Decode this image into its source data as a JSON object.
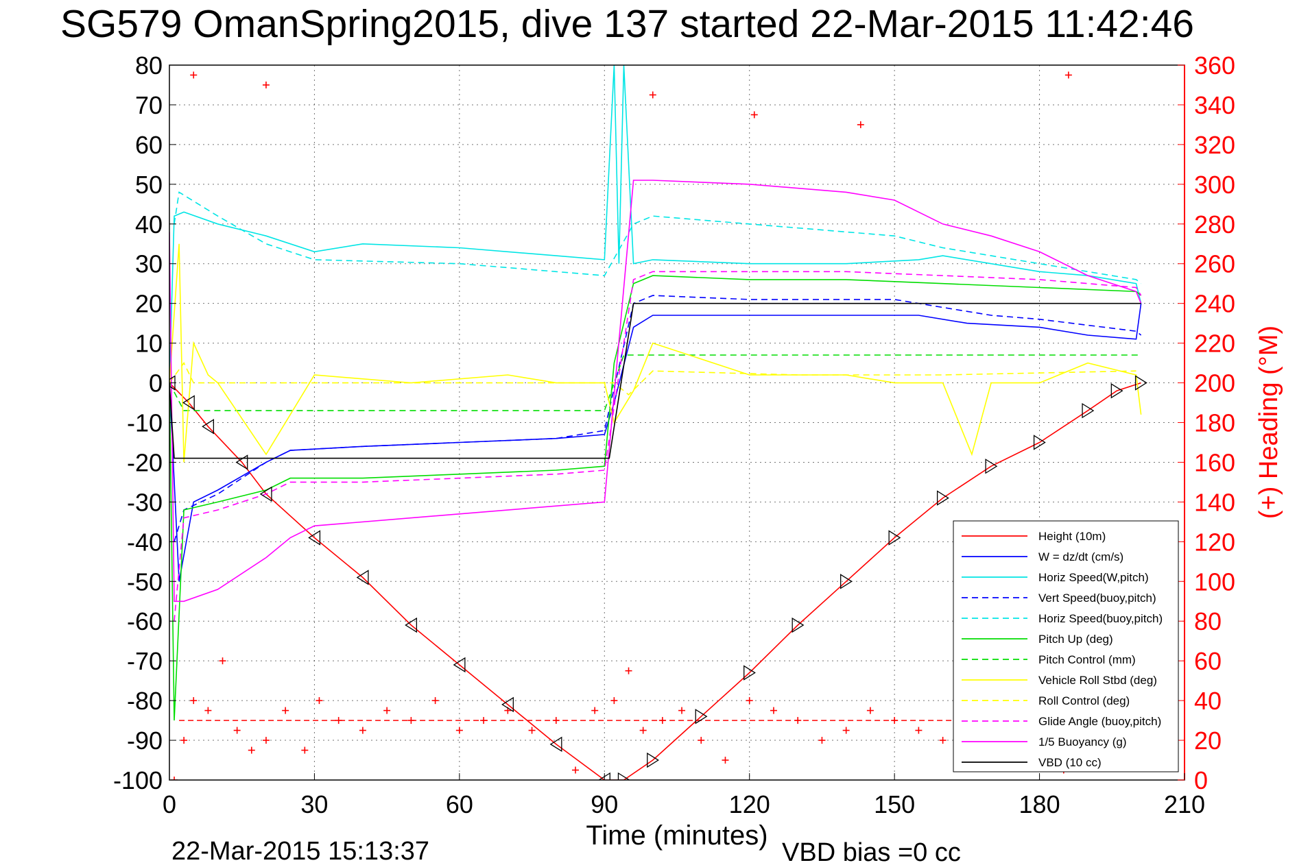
{
  "chart_data": {
    "type": "line",
    "title": "SG579 OmanSpring2015, dive 137 started 22-Mar-2015 11:42:46",
    "xlabel": "Time (minutes)",
    "ylabel": "",
    "ylabel_right": "(+) Heading (°M)",
    "xlim": [
      0,
      210
    ],
    "ylim": [
      -100,
      80
    ],
    "ylim_right": [
      0,
      360
    ],
    "xticks": [
      "0",
      "30",
      "60",
      "90",
      "120",
      "150",
      "180",
      "210"
    ],
    "yticks": [
      "80",
      "70",
      "60",
      "50",
      "40",
      "30",
      "20",
      "10",
      "0",
      "-10",
      "-20",
      "-30",
      "-40",
      "-50",
      "-60",
      "-70",
      "-80",
      "-90",
      "-100"
    ],
    "yticks_right": [
      "360",
      "340",
      "320",
      "300",
      "280",
      "260",
      "240",
      "220",
      "200",
      "180",
      "160",
      "140",
      "120",
      "100",
      "80",
      "60",
      "40",
      "20",
      "0"
    ],
    "grid": true,
    "legend_position": "bottom-right",
    "footer_left": "22-Mar-2015 15:13:37",
    "footer_right": "VBD bias =0 cc",
    "series": [
      {
        "name": "Height (10m)",
        "color": "#ff0000",
        "style": "solid",
        "x": [
          0,
          4,
          8,
          15,
          20,
          30,
          40,
          50,
          60,
          70,
          80,
          90,
          94,
          100,
          110,
          120,
          130,
          140,
          150,
          160,
          170,
          180,
          190,
          196,
          201
        ],
        "y": [
          0,
          -5,
          -11,
          -20,
          -28,
          -39,
          -49,
          -61,
          -71,
          -81,
          -91,
          -100,
          -100,
          -95,
          -84,
          -73,
          -61,
          -50,
          -39,
          -29,
          -21,
          -15,
          -7,
          -2,
          0
        ]
      },
      {
        "name": "W = dz/dt (cm/s)",
        "color": "#0000ff",
        "style": "solid",
        "x": [
          0,
          2,
          5,
          10,
          20,
          25,
          40,
          60,
          80,
          90,
          92,
          96,
          100,
          120,
          140,
          155,
          165,
          180,
          190,
          200,
          201
        ],
        "y": [
          0,
          -50,
          -30,
          -27,
          -20,
          -17,
          -16,
          -15,
          -14,
          -13,
          -5,
          14,
          17,
          17,
          17,
          17,
          15,
          14,
          12,
          11,
          20
        ]
      },
      {
        "name": "Horiz Speed(W,pitch)",
        "color": "#00e5e5",
        "style": "solid",
        "x": [
          0,
          1,
          3,
          10,
          20,
          30,
          40,
          60,
          80,
          90,
          92,
          93,
          94,
          96,
          100,
          120,
          140,
          155,
          160,
          180,
          190,
          200,
          201
        ],
        "y": [
          0,
          42,
          43,
          40,
          37,
          33,
          35,
          34,
          32,
          31,
          80,
          30,
          80,
          30,
          31,
          30,
          30,
          31,
          32,
          28,
          27,
          25,
          20
        ]
      },
      {
        "name": "Vert Speed(buoy,pitch)",
        "color": "#0000ff",
        "style": "dashed",
        "x": [
          1,
          3,
          10,
          20,
          25,
          40,
          60,
          80,
          90,
          96,
          100,
          120,
          140,
          150,
          160,
          170,
          180,
          200,
          201
        ],
        "y": [
          -40,
          -32,
          -28,
          -20,
          -17,
          -16,
          -15,
          -14,
          -12,
          20,
          22,
          21,
          21,
          21,
          19,
          17,
          16,
          13,
          12
        ]
      },
      {
        "name": "Horiz Speed(buoy,pitch)",
        "color": "#00e5e5",
        "style": "dashed",
        "x": [
          1,
          2,
          10,
          20,
          30,
          60,
          80,
          90,
          96,
          100,
          120,
          140,
          150,
          160,
          170,
          180,
          200,
          201
        ],
        "y": [
          40,
          48,
          42,
          35,
          31,
          30,
          28,
          27,
          40,
          42,
          40,
          38,
          37,
          34,
          32,
          30,
          26,
          25
        ]
      },
      {
        "name": "Pitch Up (deg)",
        "color": "#00dd00",
        "style": "solid",
        "x": [
          0,
          1,
          3,
          10,
          20,
          25,
          40,
          60,
          80,
          90,
          92,
          96,
          100,
          120,
          140,
          160,
          180,
          200,
          201
        ],
        "y": [
          0,
          -85,
          -32,
          -30,
          -27,
          -24,
          -24,
          -23,
          -22,
          -21,
          5,
          25,
          27,
          26,
          26,
          25,
          24,
          23,
          22
        ]
      },
      {
        "name": "Pitch Control (mm)",
        "color": "#00dd00",
        "style": "dashed",
        "x": [
          0,
          3,
          90,
          94,
          201
        ],
        "y": [
          0,
          -7,
          -7,
          7,
          7
        ]
      },
      {
        "name": "Vehicle Roll Stbd (deg)",
        "color": "#ffff00",
        "style": "solid",
        "x": [
          0,
          2,
          3,
          5,
          8,
          10,
          20,
          30,
          50,
          70,
          80,
          90,
          92,
          96,
          100,
          120,
          140,
          150,
          160,
          166,
          170,
          180,
          190,
          200,
          201
        ],
        "y": [
          0,
          35,
          -20,
          10,
          2,
          0,
          -18,
          2,
          0,
          2,
          0,
          0,
          -10,
          -2,
          10,
          2,
          2,
          0,
          0,
          -18,
          0,
          0,
          5,
          2,
          -8
        ]
      },
      {
        "name": "Roll Control (deg)",
        "color": "#ffff00",
        "style": "dashed",
        "x": [
          0,
          3,
          5,
          92,
          95,
          100,
          130,
          160,
          200
        ],
        "y": [
          0,
          5,
          0,
          0,
          -3,
          3,
          2,
          2,
          3
        ]
      },
      {
        "name": "Glide Angle (buoy,pitch)",
        "color": "#ff00ff",
        "style": "dashed",
        "x": [
          1,
          3,
          10,
          20,
          25,
          40,
          60,
          80,
          90,
          96,
          100,
          120,
          140,
          160,
          180,
          200,
          201
        ],
        "y": [
          -60,
          -34,
          -32,
          -28,
          -25,
          -25,
          -24,
          -23,
          -22,
          26,
          28,
          28,
          28,
          27,
          26,
          24,
          22
        ]
      },
      {
        "name": "1/5 Buoyancy (g)",
        "color": "#ff00ff",
        "style": "solid",
        "x": [
          0,
          1,
          3,
          10,
          20,
          25,
          30,
          60,
          90,
          96,
          100,
          120,
          140,
          150,
          160,
          170,
          180,
          190,
          200,
          201
        ],
        "y": [
          38,
          -55,
          -55,
          -52,
          -44,
          -39,
          -36,
          -33,
          -30,
          51,
          51,
          50,
          48,
          46,
          40,
          37,
          33,
          27,
          23,
          20
        ]
      },
      {
        "name": "VBD (10 cc)",
        "color": "#000000",
        "style": "solid",
        "x": [
          0,
          1,
          90,
          91,
          96,
          201
        ],
        "y": [
          0,
          -19,
          -19,
          -19,
          20,
          20
        ]
      }
    ],
    "heading": {
      "color": "#ff0000",
      "marker": "+",
      "x": [
        1,
        3,
        5,
        8,
        11,
        14,
        17,
        20,
        24,
        28,
        31,
        35,
        40,
        45,
        50,
        55,
        60,
        65,
        70,
        75,
        80,
        84,
        88,
        92,
        95,
        98,
        102,
        106,
        110,
        115,
        120,
        125,
        130,
        135,
        140,
        145,
        150,
        155,
        160,
        165,
        170,
        175,
        180,
        185,
        190
      ],
      "y": [
        0,
        20,
        40,
        35,
        60,
        25,
        15,
        20,
        35,
        15,
        40,
        30,
        25,
        35,
        30,
        40,
        25,
        30,
        35,
        25,
        30,
        5,
        35,
        40,
        55,
        25,
        30,
        35,
        20,
        10,
        40,
        35,
        30,
        20,
        25,
        35,
        30,
        25,
        20,
        30,
        15,
        25,
        20,
        5,
        15
      ],
      "mean": 30
    },
    "heading_upper": {
      "color": "#ff0000",
      "marker": "+",
      "x": [
        5,
        20,
        100,
        121,
        143,
        186
      ],
      "y": [
        355,
        350,
        345,
        335,
        330,
        355
      ]
    },
    "depth_markers": {
      "dive_symbol": "▷",
      "climb_symbol": "◁"
    }
  }
}
